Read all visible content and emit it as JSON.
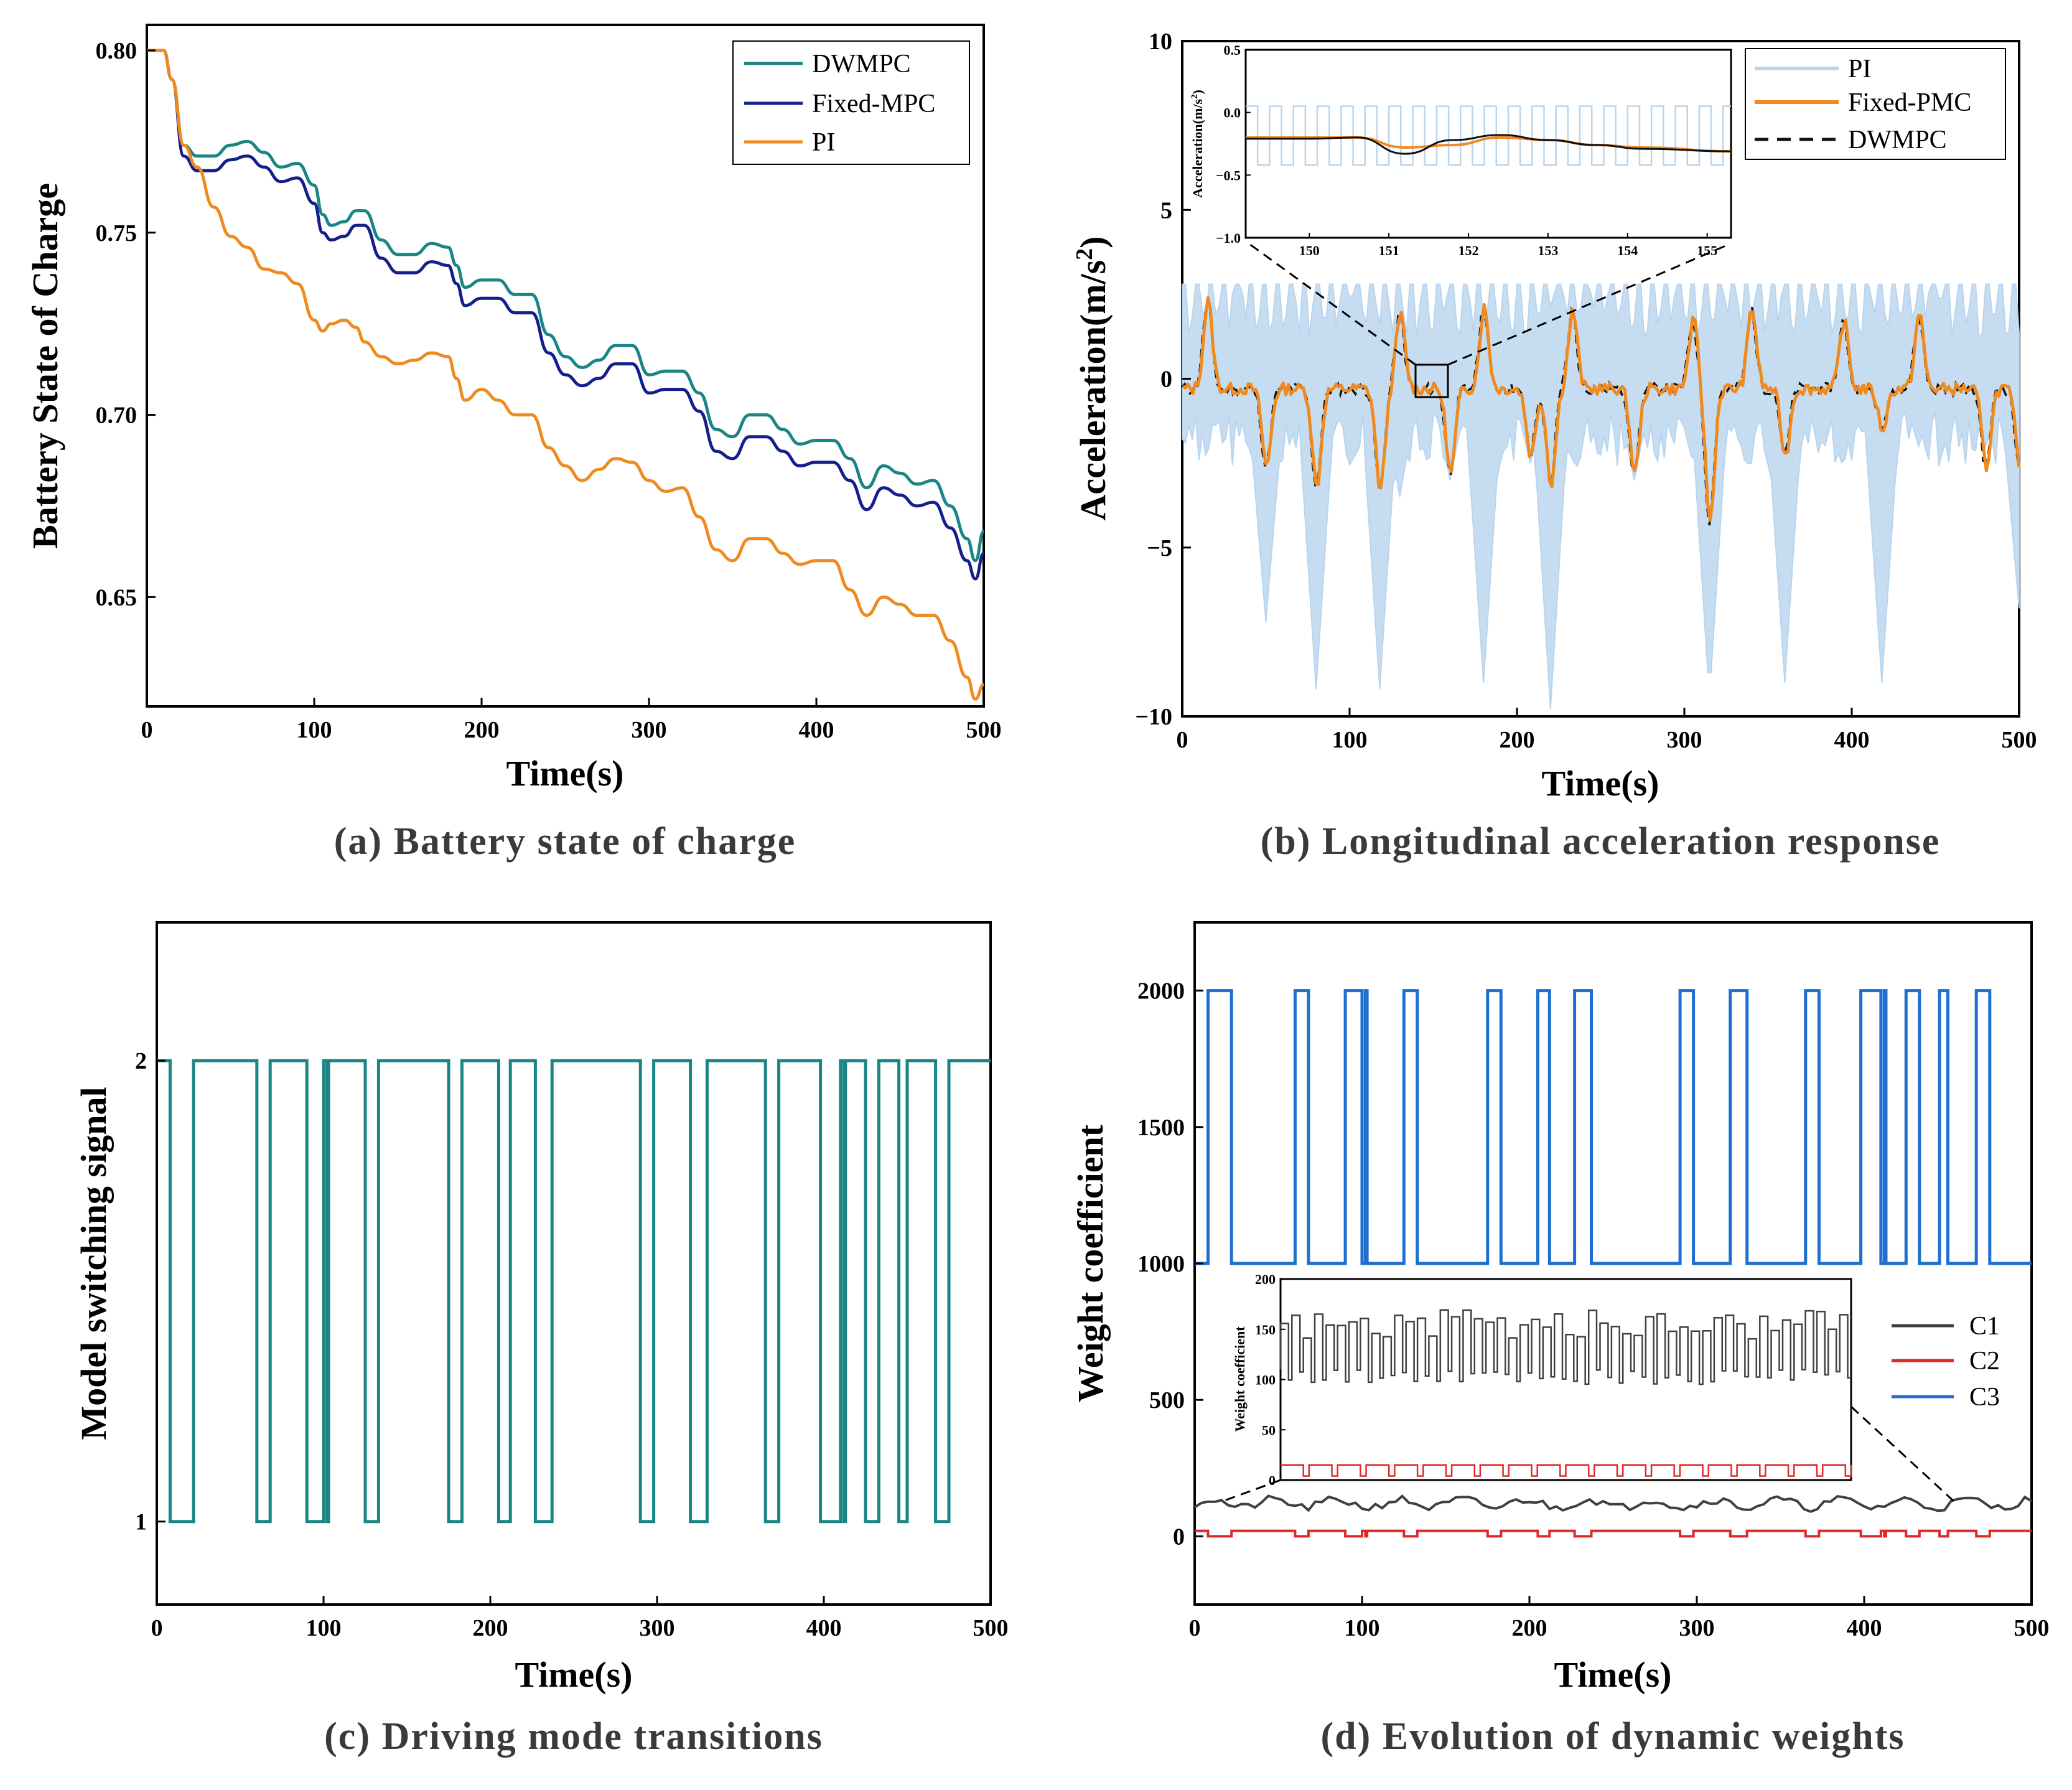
{
  "chart_data": [
    {
      "id": "a",
      "type": "line",
      "caption": "(a) Battery state of charge",
      "xlabel": "Time(s)",
      "ylabel": "Battery State of Charge",
      "xlim": [
        0,
        500
      ],
      "ylim": [
        0.62,
        0.807
      ],
      "xticks": [
        "0",
        "100",
        "200",
        "300",
        "400",
        "500"
      ],
      "yticks": [
        "0.65",
        "0.70",
        "0.75",
        "0.80"
      ],
      "legend_position": "top-right",
      "series": [
        {
          "name": "DWMPC",
          "color": "#1a8585",
          "x": [
            0,
            10,
            15,
            22,
            30,
            40,
            50,
            60,
            70,
            80,
            90,
            100,
            105,
            110,
            118,
            125,
            130,
            140,
            150,
            160,
            170,
            180,
            185,
            190,
            200,
            210,
            220,
            230,
            240,
            250,
            260,
            270,
            280,
            290,
            300,
            310,
            320,
            330,
            340,
            350,
            360,
            370,
            380,
            390,
            400,
            410,
            420,
            430,
            440,
            450,
            460,
            470,
            480,
            490,
            495,
            500
          ],
          "y": [
            0.8,
            0.8,
            0.792,
            0.774,
            0.771,
            0.771,
            0.774,
            0.775,
            0.772,
            0.768,
            0.769,
            0.763,
            0.755,
            0.752,
            0.753,
            0.756,
            0.756,
            0.748,
            0.744,
            0.744,
            0.747,
            0.746,
            0.741,
            0.735,
            0.737,
            0.737,
            0.733,
            0.733,
            0.722,
            0.716,
            0.713,
            0.715,
            0.719,
            0.719,
            0.711,
            0.712,
            0.712,
            0.706,
            0.696,
            0.694,
            0.7,
            0.7,
            0.696,
            0.692,
            0.693,
            0.693,
            0.688,
            0.68,
            0.686,
            0.684,
            0.681,
            0.682,
            0.675,
            0.666,
            0.66,
            0.668
          ]
        },
        {
          "name": "Fixed-MPC",
          "color": "#141f8c",
          "x": [
            0,
            10,
            15,
            22,
            30,
            40,
            50,
            60,
            70,
            80,
            90,
            100,
            105,
            110,
            118,
            125,
            130,
            140,
            150,
            160,
            170,
            180,
            185,
            190,
            200,
            210,
            220,
            230,
            240,
            250,
            260,
            270,
            280,
            290,
            300,
            310,
            320,
            330,
            340,
            350,
            360,
            370,
            380,
            390,
            400,
            410,
            420,
            430,
            440,
            450,
            460,
            470,
            480,
            490,
            495,
            500
          ],
          "y": [
            0.8,
            0.8,
            0.792,
            0.771,
            0.767,
            0.767,
            0.77,
            0.771,
            0.768,
            0.764,
            0.765,
            0.758,
            0.75,
            0.748,
            0.749,
            0.752,
            0.752,
            0.743,
            0.739,
            0.739,
            0.742,
            0.741,
            0.736,
            0.73,
            0.732,
            0.732,
            0.728,
            0.728,
            0.717,
            0.711,
            0.708,
            0.71,
            0.714,
            0.714,
            0.706,
            0.707,
            0.707,
            0.701,
            0.69,
            0.688,
            0.694,
            0.694,
            0.69,
            0.686,
            0.687,
            0.687,
            0.682,
            0.674,
            0.68,
            0.678,
            0.675,
            0.676,
            0.669,
            0.66,
            0.655,
            0.662
          ]
        },
        {
          "name": "PI",
          "color": "#f08a1e",
          "x": [
            0,
            10,
            15,
            22,
            30,
            40,
            50,
            60,
            70,
            80,
            90,
            100,
            105,
            110,
            118,
            125,
            130,
            140,
            150,
            160,
            170,
            180,
            185,
            190,
            200,
            210,
            220,
            230,
            240,
            250,
            260,
            270,
            280,
            290,
            300,
            310,
            320,
            330,
            340,
            350,
            360,
            370,
            380,
            390,
            400,
            410,
            420,
            430,
            440,
            450,
            460,
            470,
            480,
            490,
            495,
            500
          ],
          "y": [
            0.8,
            0.8,
            0.792,
            0.774,
            0.768,
            0.757,
            0.749,
            0.746,
            0.74,
            0.739,
            0.736,
            0.726,
            0.723,
            0.725,
            0.726,
            0.724,
            0.72,
            0.716,
            0.714,
            0.715,
            0.717,
            0.716,
            0.71,
            0.704,
            0.707,
            0.704,
            0.7,
            0.7,
            0.691,
            0.686,
            0.682,
            0.685,
            0.688,
            0.687,
            0.682,
            0.679,
            0.68,
            0.672,
            0.663,
            0.66,
            0.666,
            0.666,
            0.662,
            0.659,
            0.66,
            0.66,
            0.652,
            0.645,
            0.65,
            0.648,
            0.645,
            0.645,
            0.638,
            0.628,
            0.622,
            0.626
          ]
        }
      ]
    },
    {
      "id": "b",
      "type": "line",
      "caption": "(b) Longitudinal acceleration response",
      "xlabel": "Time(s)",
      "ylabel": "Acceleration(m/s",
      "ylabel_sup": "2",
      "ylabel_close": ")",
      "xlim": [
        0,
        500
      ],
      "ylim": [
        -10,
        10
      ],
      "xticks": [
        "0",
        "100",
        "200",
        "300",
        "400",
        "500"
      ],
      "yticks": [
        "−10",
        "−5",
        "0",
        "5",
        "10"
      ],
      "legend_position": "top-right",
      "legend": [
        {
          "name": "PI",
          "color": "#b8d5ee",
          "style": "solid"
        },
        {
          "name": "Fixed-PMC",
          "color": "#f08a1e",
          "style": "solid"
        },
        {
          "name": "DWMPC",
          "color": "#111111",
          "style": "dashed"
        }
      ],
      "events": [
        15,
        50,
        80,
        118,
        130,
        160,
        180,
        208,
        220,
        233,
        270,
        305,
        315,
        340,
        360,
        395,
        418,
        440,
        480,
        500
      ],
      "pi_band": {
        "upper": 2.8,
        "lower_min": [
          -1.8,
          -7.2,
          -9.2,
          -9.2,
          -3.5,
          -3.0,
          -9.0,
          -2.5,
          -9.8,
          -2.0,
          -3.0,
          -2.5,
          -9.5,
          -2.0,
          -9.0,
          -2.5,
          -9.0,
          -2.0,
          -2.0,
          -6.8
        ]
      },
      "fixed_pmc_peaks": [
        2.6,
        -2.3,
        -2.9,
        -3.0,
        2.2,
        -2.5,
        2.4,
        -2.0,
        -2.8,
        2.3,
        -2.5,
        2.0,
        -3.9,
        2.4,
        -2.0,
        2.0,
        -1.2,
        2.2,
        -2.3,
        -2.2
      ],
      "inset": {
        "xlim": [
          149.2,
          155.3
        ],
        "ylim": [
          -1.0,
          0.5
        ],
        "xticks": [
          "150",
          "151",
          "152",
          "153",
          "154",
          "155"
        ],
        "yticks": [
          "−1.0",
          "−0.5",
          "0.0",
          "0.5"
        ],
        "ylabel": "Acceleration(m/s",
        "ylabel_sup": "2",
        "ylabel_close": ")",
        "fixed_pmc": {
          "x": [
            149.2,
            150.0,
            150.6,
            151.2,
            151.8,
            152.4,
            153.0,
            153.6,
            154.2,
            155.3
          ],
          "y": [
            -0.2,
            -0.2,
            -0.2,
            -0.28,
            -0.26,
            -0.2,
            -0.22,
            -0.26,
            -0.28,
            -0.31
          ]
        },
        "dwmpc": {
          "x": [
            149.2,
            150.0,
            150.6,
            151.2,
            151.8,
            152.4,
            153.0,
            153.6,
            154.2,
            155.3
          ],
          "y": [
            -0.21,
            -0.21,
            -0.2,
            -0.33,
            -0.22,
            -0.18,
            -0.22,
            -0.26,
            -0.29,
            -0.31
          ]
        }
      }
    },
    {
      "id": "c",
      "type": "line",
      "caption": "(c) Driving mode transitions",
      "xlabel": "Time(s)",
      "ylabel": "Model switching signal",
      "xlim": [
        0,
        500
      ],
      "ylim": [
        0.82,
        2.3
      ],
      "xticks": [
        "0",
        "100",
        "200",
        "300",
        "400",
        "500"
      ],
      "yticks": [
        "1",
        "2"
      ],
      "series": [
        {
          "name": "mode",
          "color": "#1a8585",
          "low_intervals": [
            [
              8,
              22
            ],
            [
              60,
              68
            ],
            [
              90,
              100
            ],
            [
              102,
              103
            ],
            [
              125,
              133
            ],
            [
              175,
              183
            ],
            [
              205,
              212
            ],
            [
              227,
              237
            ],
            [
              290,
              298
            ],
            [
              320,
              330
            ],
            [
              365,
              373
            ],
            [
              398,
              410
            ],
            [
              412,
              413
            ],
            [
              425,
              433
            ],
            [
              445,
              450
            ],
            [
              467,
              475
            ]
          ]
        }
      ]
    },
    {
      "id": "d",
      "type": "line",
      "caption": "(d) Evolution of dynamic weights",
      "xlabel": "Time(s)",
      "ylabel": "Weight  coefficient",
      "xlim": [
        0,
        500
      ],
      "ylim": [
        -250,
        2250
      ],
      "xticks": [
        "0",
        "100",
        "200",
        "300",
        "400",
        "500"
      ],
      "yticks": [
        "0",
        "500",
        "1000",
        "1500",
        "2000"
      ],
      "legend_position": "right",
      "series": [
        {
          "name": "C1",
          "color": "#404040",
          "base": 120
        },
        {
          "name": "C2",
          "color": "#e02828",
          "low": 0,
          "high": 20
        },
        {
          "name": "C3",
          "color": "#1e6fcf",
          "low": 1000,
          "high": 2000,
          "high_intervals": [
            [
              8,
              22
            ],
            [
              60,
              68
            ],
            [
              90,
              100
            ],
            [
              102,
              103
            ],
            [
              125,
              133
            ],
            [
              175,
              183
            ],
            [
              205,
              212
            ],
            [
              227,
              237
            ],
            [
              290,
              298
            ],
            [
              320,
              330
            ],
            [
              365,
              373
            ],
            [
              398,
              410
            ],
            [
              412,
              413
            ],
            [
              425,
              433
            ],
            [
              445,
              450
            ],
            [
              467,
              475
            ]
          ]
        }
      ],
      "inset": {
        "ylim": [
          0,
          200
        ],
        "yticks": [
          "0",
          "50",
          "100",
          "150",
          "200"
        ],
        "ylabel": "Weight coefficient"
      }
    }
  ]
}
